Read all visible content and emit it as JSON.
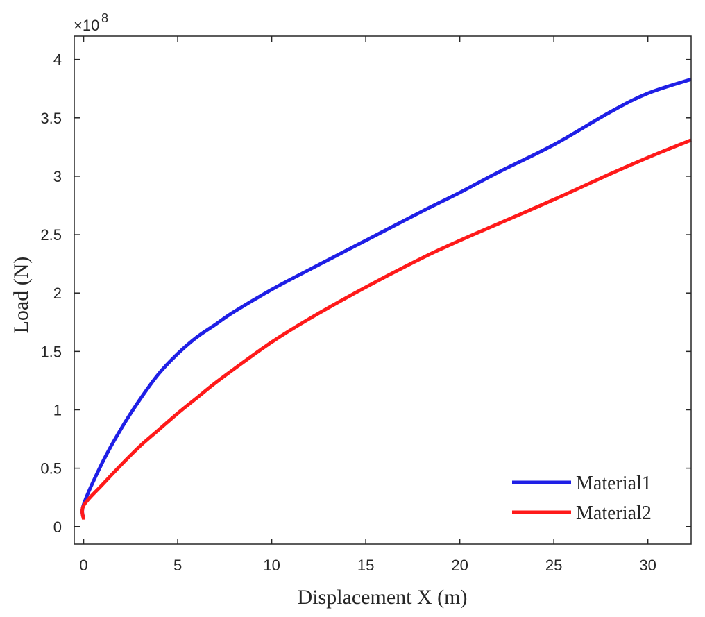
{
  "chart_data": {
    "type": "line",
    "title": "",
    "xlabel": "Displacement X (m)",
    "ylabel": "Load (N)",
    "y_exponent_base": "×10",
    "y_exponent_power": "8",
    "xlim": [
      -0.5,
      32.3
    ],
    "ylim": [
      -0.15,
      4.2
    ],
    "x_ticks": [
      0,
      5,
      10,
      15,
      20,
      25,
      30
    ],
    "x_tick_labels": [
      "0",
      "5",
      "10",
      "15",
      "20",
      "25",
      "30"
    ],
    "y_ticks": [
      0,
      0.5,
      1,
      1.5,
      2,
      2.5,
      3,
      3.5,
      4
    ],
    "y_tick_labels": [
      "0",
      "0.5",
      "1",
      "1.5",
      "2",
      "2.5",
      "3",
      "3.5",
      "4"
    ],
    "grid": false,
    "legend_position": "bottom-right",
    "series": [
      {
        "name": "Material1",
        "color": "#1f1fe6",
        "x": [
          0,
          0,
          1,
          2,
          3,
          4,
          5,
          6,
          7,
          8,
          10,
          12,
          15,
          18,
          20,
          22,
          25,
          28,
          30,
          32.3
        ],
        "y": [
          0.07,
          0.19,
          0.55,
          0.84,
          1.09,
          1.31,
          1.48,
          1.62,
          1.73,
          1.84,
          2.03,
          2.2,
          2.45,
          2.7,
          2.86,
          3.03,
          3.27,
          3.55,
          3.71,
          3.83
        ]
      },
      {
        "name": "Material2",
        "color": "#ff1a1a",
        "x": [
          0,
          0,
          1,
          2,
          3,
          4,
          5,
          6,
          7,
          8,
          10,
          12,
          15,
          18,
          20,
          22,
          25,
          28,
          30,
          32.3
        ],
        "y": [
          0.06,
          0.18,
          0.36,
          0.53,
          0.69,
          0.83,
          0.97,
          1.1,
          1.23,
          1.35,
          1.58,
          1.78,
          2.05,
          2.3,
          2.45,
          2.59,
          2.8,
          3.02,
          3.16,
          3.31
        ]
      }
    ]
  }
}
